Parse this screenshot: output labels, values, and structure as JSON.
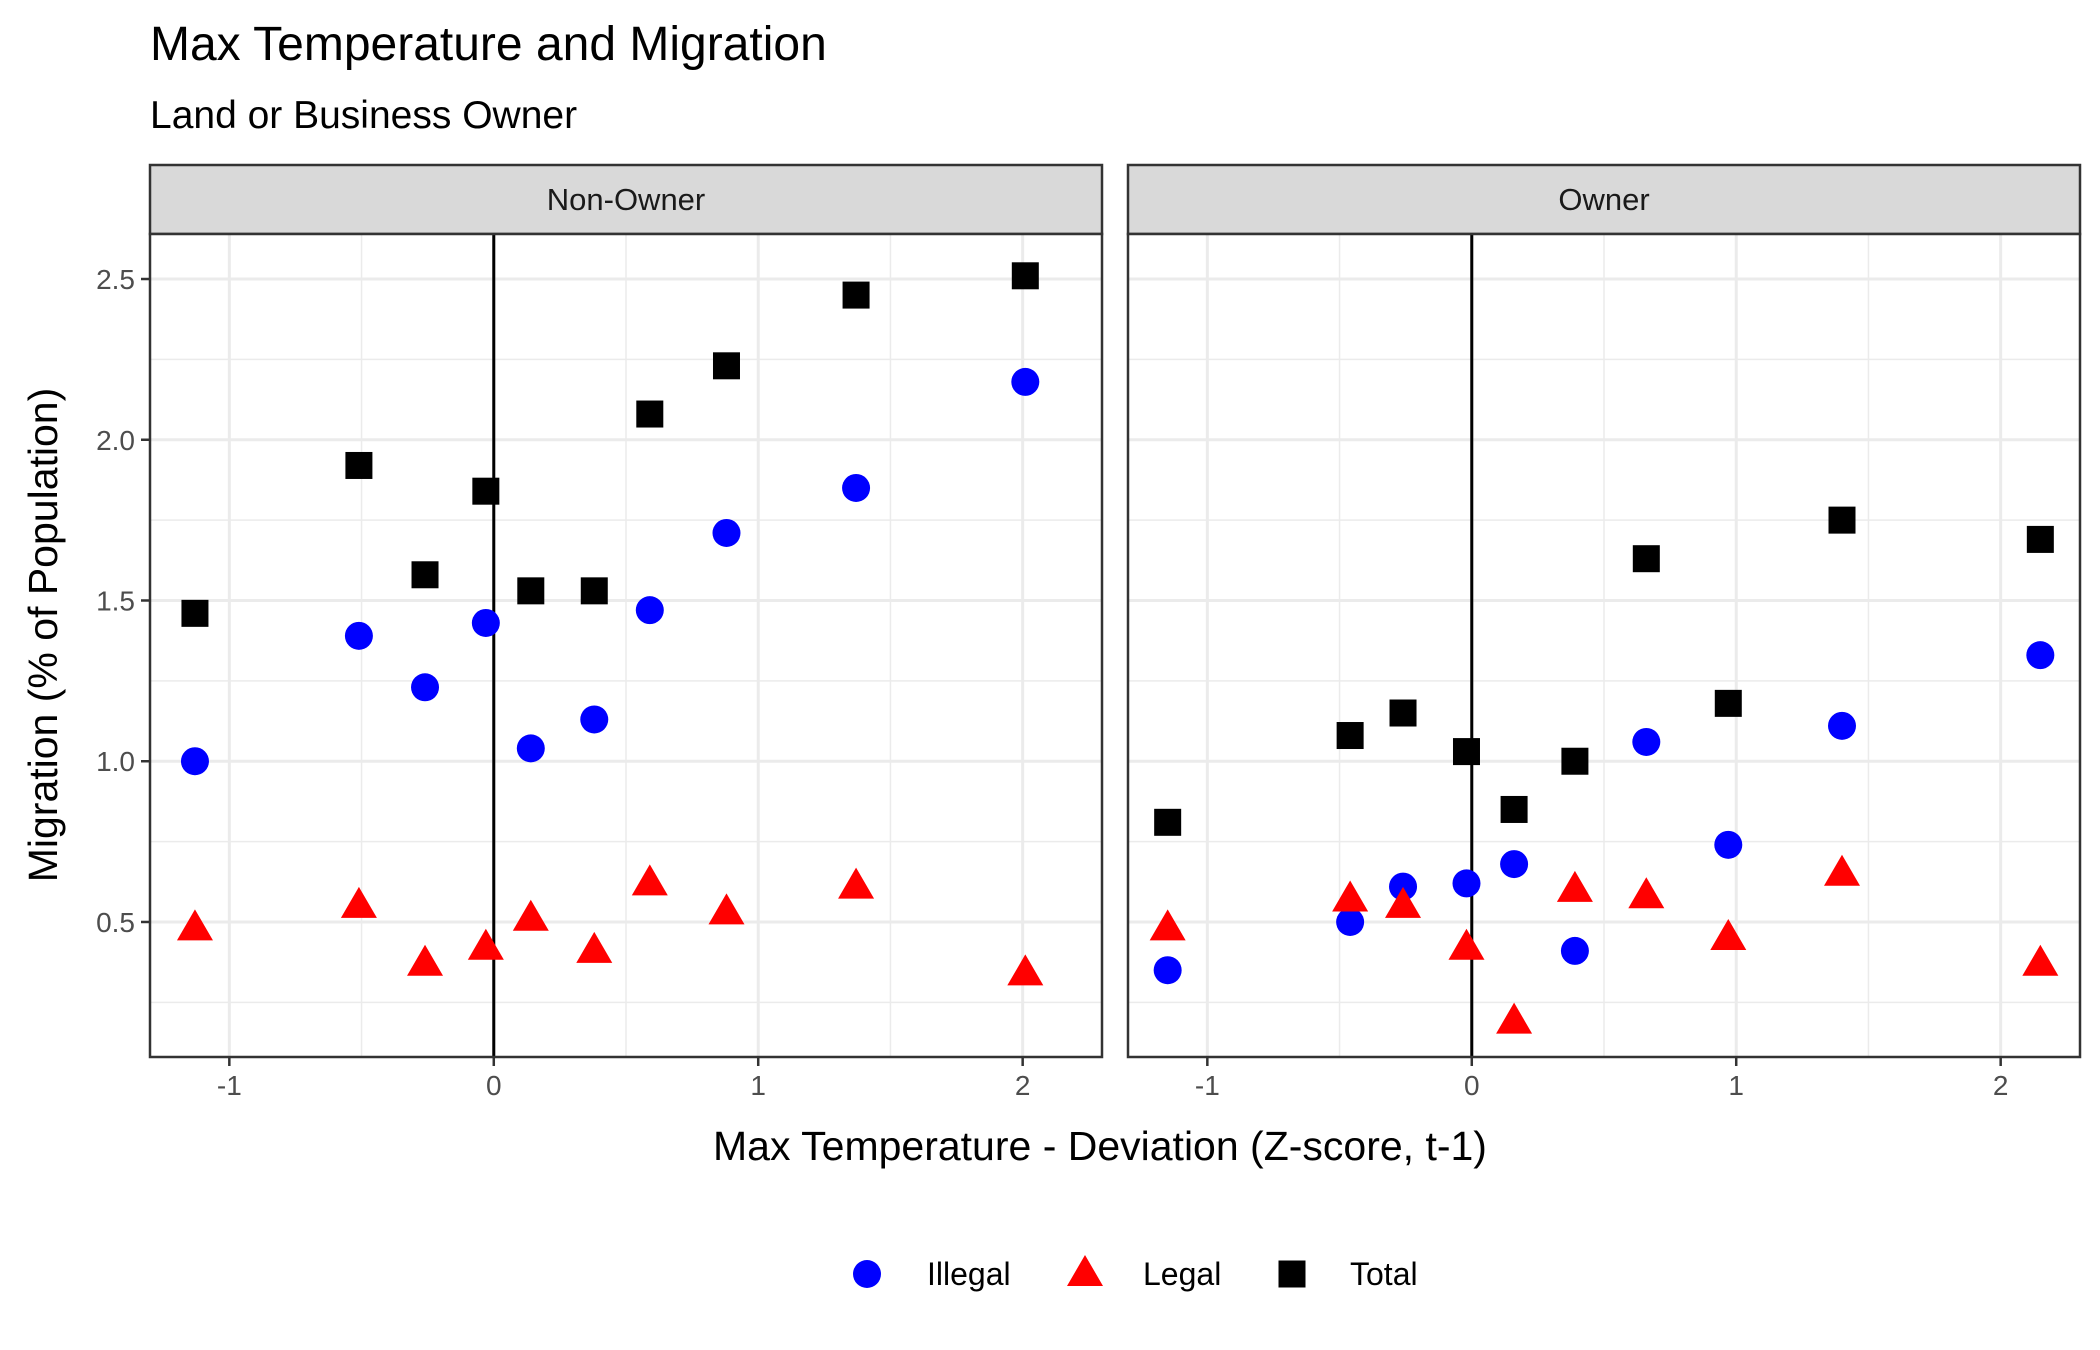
{
  "chart_data": {
    "type": "scatter",
    "title": "Max Temperature and Migration",
    "subtitle": "Land or Business Owner",
    "xlabel": "Max Temperature - Deviation (Z-score, t-1)",
    "ylabel": "Migration (% of Population)",
    "xlim": [
      -1.3,
      2.3
    ],
    "ylim": [
      0.08,
      2.64
    ],
    "x_ticks": [
      -1,
      0,
      1,
      2
    ],
    "x_tick_labels": [
      "-1",
      "0",
      "1",
      "2"
    ],
    "y_ticks": [
      0.5,
      1.0,
      1.5,
      2.0,
      2.5
    ],
    "y_tick_labels": [
      "0.5",
      "1.0",
      "1.5",
      "2.0",
      "2.5"
    ],
    "grid": true,
    "reference_line_x": 0,
    "legend_position": "bottom",
    "legend": [
      {
        "name": "Illegal",
        "shape": "circle",
        "color": "#0000FF"
      },
      {
        "name": "Legal",
        "shape": "triangle",
        "color": "#FF0000"
      },
      {
        "name": "Total",
        "shape": "square",
        "color": "#000000"
      }
    ],
    "panels": [
      {
        "label": "Non-Owner",
        "series": [
          {
            "name": "Illegal",
            "points": [
              {
                "x": -1.13,
                "y": 1.0
              },
              {
                "x": -0.51,
                "y": 1.39
              },
              {
                "x": -0.26,
                "y": 1.23
              },
              {
                "x": -0.03,
                "y": 1.43
              },
              {
                "x": 0.14,
                "y": 1.04
              },
              {
                "x": 0.38,
                "y": 1.13
              },
              {
                "x": 0.59,
                "y": 1.47
              },
              {
                "x": 0.88,
                "y": 1.71
              },
              {
                "x": 1.37,
                "y": 1.85
              },
              {
                "x": 2.01,
                "y": 2.18
              }
            ]
          },
          {
            "name": "Legal",
            "points": [
              {
                "x": -1.13,
                "y": 0.48
              },
              {
                "x": -0.51,
                "y": 0.55
              },
              {
                "x": -0.26,
                "y": 0.37
              },
              {
                "x": -0.03,
                "y": 0.42
              },
              {
                "x": 0.14,
                "y": 0.51
              },
              {
                "x": 0.38,
                "y": 0.41
              },
              {
                "x": 0.59,
                "y": 0.62
              },
              {
                "x": 0.88,
                "y": 0.53
              },
              {
                "x": 1.37,
                "y": 0.61
              },
              {
                "x": 2.01,
                "y": 0.34
              }
            ]
          },
          {
            "name": "Total",
            "points": [
              {
                "x": -1.13,
                "y": 1.46
              },
              {
                "x": -0.51,
                "y": 1.92
              },
              {
                "x": -0.26,
                "y": 1.58
              },
              {
                "x": -0.03,
                "y": 1.84
              },
              {
                "x": 0.14,
                "y": 1.53
              },
              {
                "x": 0.38,
                "y": 1.53
              },
              {
                "x": 0.59,
                "y": 2.08
              },
              {
                "x": 0.88,
                "y": 2.23
              },
              {
                "x": 1.37,
                "y": 2.45
              },
              {
                "x": 2.01,
                "y": 2.51
              }
            ]
          }
        ]
      },
      {
        "label": "Owner",
        "series": [
          {
            "name": "Illegal",
            "points": [
              {
                "x": -1.15,
                "y": 0.35
              },
              {
                "x": -0.46,
                "y": 0.5
              },
              {
                "x": -0.26,
                "y": 0.61
              },
              {
                "x": -0.02,
                "y": 0.62
              },
              {
                "x": 0.16,
                "y": 0.68
              },
              {
                "x": 0.39,
                "y": 0.41
              },
              {
                "x": 0.66,
                "y": 1.06
              },
              {
                "x": 0.97,
                "y": 0.74
              },
              {
                "x": 1.4,
                "y": 1.11
              },
              {
                "x": 2.15,
                "y": 1.33
              }
            ]
          },
          {
            "name": "Legal",
            "points": [
              {
                "x": -1.15,
                "y": 0.48
              },
              {
                "x": -0.46,
                "y": 0.57
              },
              {
                "x": -0.26,
                "y": 0.55
              },
              {
                "x": -0.02,
                "y": 0.42
              },
              {
                "x": 0.16,
                "y": 0.19
              },
              {
                "x": 0.39,
                "y": 0.6
              },
              {
                "x": 0.66,
                "y": 0.58
              },
              {
                "x": 0.97,
                "y": 0.45
              },
              {
                "x": 1.4,
                "y": 0.65
              },
              {
                "x": 2.15,
                "y": 0.37
              }
            ]
          },
          {
            "name": "Total",
            "points": [
              {
                "x": -1.15,
                "y": 0.81
              },
              {
                "x": -0.46,
                "y": 1.08
              },
              {
                "x": -0.26,
                "y": 1.15
              },
              {
                "x": -0.02,
                "y": 1.03
              },
              {
                "x": 0.16,
                "y": 0.85
              },
              {
                "x": 0.39,
                "y": 1.0
              },
              {
                "x": 0.66,
                "y": 1.63
              },
              {
                "x": 0.97,
                "y": 1.18
              },
              {
                "x": 1.4,
                "y": 1.75
              },
              {
                "x": 2.15,
                "y": 1.69
              }
            ]
          }
        ]
      }
    ]
  }
}
